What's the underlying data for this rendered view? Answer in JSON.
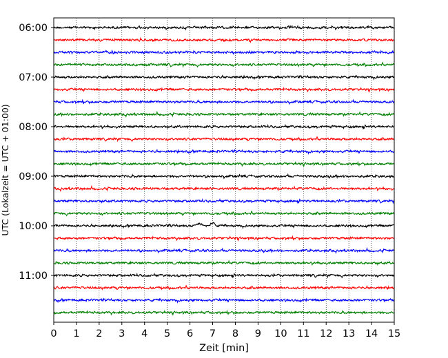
{
  "chart_data": {
    "type": "line",
    "title": "",
    "xlabel": "Zeit  [min]",
    "ylabel": "UTC (Lokalzeit = UTC + 01:00)",
    "xlim": [
      0,
      15
    ],
    "x_ticks": [
      0,
      1,
      2,
      3,
      4,
      5,
      6,
      7,
      8,
      9,
      10,
      11,
      12,
      13,
      14,
      15
    ],
    "row_interval_min": 15,
    "grid": "vertical dotted lines at each minute",
    "colors_cycle": [
      "#000000",
      "#ff0000",
      "#0000ff",
      "#008000"
    ],
    "y_tick_labels": [
      {
        "row": 0,
        "label": "06:00"
      },
      {
        "row": 4,
        "label": "07:00"
      },
      {
        "row": 8,
        "label": "08:00"
      },
      {
        "row": 12,
        "label": "09:00"
      },
      {
        "row": 16,
        "label": "10:00"
      },
      {
        "row": 20,
        "label": "11:00"
      }
    ],
    "series": [
      {
        "start": "06:00",
        "color": "#000000"
      },
      {
        "start": "06:15",
        "color": "#ff0000"
      },
      {
        "start": "06:30",
        "color": "#0000ff"
      },
      {
        "start": "06:45",
        "color": "#008000"
      },
      {
        "start": "07:00",
        "color": "#000000"
      },
      {
        "start": "07:15",
        "color": "#ff0000"
      },
      {
        "start": "07:30",
        "color": "#0000ff"
      },
      {
        "start": "07:45",
        "color": "#008000"
      },
      {
        "start": "08:00",
        "color": "#000000"
      },
      {
        "start": "08:15",
        "color": "#ff0000"
      },
      {
        "start": "08:30",
        "color": "#0000ff"
      },
      {
        "start": "08:45",
        "color": "#008000"
      },
      {
        "start": "09:00",
        "color": "#000000"
      },
      {
        "start": "09:15",
        "color": "#ff0000"
      },
      {
        "start": "09:30",
        "color": "#0000ff"
      },
      {
        "start": "09:45",
        "color": "#008000"
      },
      {
        "start": "10:00",
        "color": "#000000"
      },
      {
        "start": "10:15",
        "color": "#ff0000"
      },
      {
        "start": "10:30",
        "color": "#0000ff"
      },
      {
        "start": "10:45",
        "color": "#008000"
      },
      {
        "start": "11:00",
        "color": "#000000"
      },
      {
        "start": "11:15",
        "color": "#ff0000"
      },
      {
        "start": "11:30",
        "color": "#0000ff"
      },
      {
        "start": "11:45",
        "color": "#008000"
      }
    ],
    "events": [
      {
        "row": 16,
        "x_min": 6.4,
        "note_shape": "small bump"
      },
      {
        "row": 16,
        "x_min": 7.0,
        "note_shape": "small bump"
      }
    ]
  }
}
